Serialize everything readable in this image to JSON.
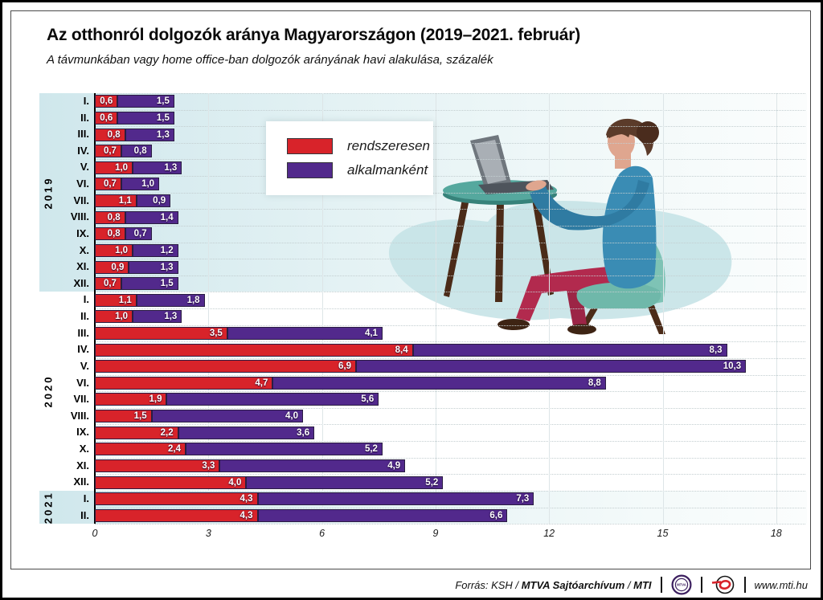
{
  "page": {
    "title": "Az otthonról dolgozók aránya Magyarországon (2019–2021. február)",
    "subtitle": "A távmunkában vagy home office-ban dolgozók arányának havi alakulása, százalék"
  },
  "legend": {
    "items": [
      {
        "label": "rendszeresen",
        "color": "#d8232a"
      },
      {
        "label": "alkalmanként",
        "color": "#52298c"
      }
    ]
  },
  "chart_data": {
    "type": "bar",
    "orientation": "horizontal",
    "stacked": true,
    "xlim": [
      0,
      18
    ],
    "x_ticks": [
      "0",
      "3",
      "6",
      "9",
      "12",
      "15",
      "18"
    ],
    "grid": true,
    "legend_position": "top-left-floating",
    "series": [
      {
        "name": "rendszeresen",
        "color": "#d8232a"
      },
      {
        "name": "alkalmanként",
        "color": "#52298c"
      }
    ],
    "groups": [
      {
        "year": "2019",
        "band": true,
        "months": [
          "I.",
          "II.",
          "III.",
          "IV.",
          "V.",
          "VI.",
          "VII.",
          "VIII.",
          "IX.",
          "X.",
          "XI.",
          "XII."
        ],
        "values": [
          [
            "0,6",
            "1,5"
          ],
          [
            "0,6",
            "1,5"
          ],
          [
            "0,8",
            "1,3"
          ],
          [
            "0,7",
            "0,8"
          ],
          [
            "1,0",
            "1,3"
          ],
          [
            "0,7",
            "1,0"
          ],
          [
            "1,1",
            "0,9"
          ],
          [
            "0,8",
            "1,4"
          ],
          [
            "0,8",
            "0,7"
          ],
          [
            "1,0",
            "1,2"
          ],
          [
            "0,9",
            "1,3"
          ],
          [
            "0,7",
            "1,5"
          ]
        ]
      },
      {
        "year": "2020",
        "band": false,
        "months": [
          "I.",
          "II.",
          "III.",
          "IV.",
          "V.",
          "VI.",
          "VII.",
          "VIII.",
          "IX.",
          "X.",
          "XI.",
          "XII."
        ],
        "values": [
          [
            "1,1",
            "1,8"
          ],
          [
            "1,0",
            "1,3"
          ],
          [
            "3,5",
            "4,1"
          ],
          [
            "8,4",
            "8,3"
          ],
          [
            "6,9",
            "10,3"
          ],
          [
            "4,7",
            "8,8"
          ],
          [
            "1,9",
            "5,6"
          ],
          [
            "1,5",
            "4,0"
          ],
          [
            "2,2",
            "3,6"
          ],
          [
            "2,4",
            "5,2"
          ],
          [
            "3,3",
            "4,9"
          ],
          [
            "4,0",
            "5,2"
          ]
        ]
      },
      {
        "year": "2021",
        "band": true,
        "months": [
          "I.",
          "II."
        ],
        "values": [
          [
            "4,3",
            "7,3"
          ],
          [
            "4,3",
            "6,6"
          ]
        ]
      }
    ]
  },
  "footer": {
    "source_prefix": "Forrás: KSH /",
    "source_strong1": "MTVA Sajtóarchívum",
    "source_mid": "/",
    "source_strong2": "MTI",
    "mtva_logo_text": "MTVA",
    "website": "www.mti.hu"
  }
}
